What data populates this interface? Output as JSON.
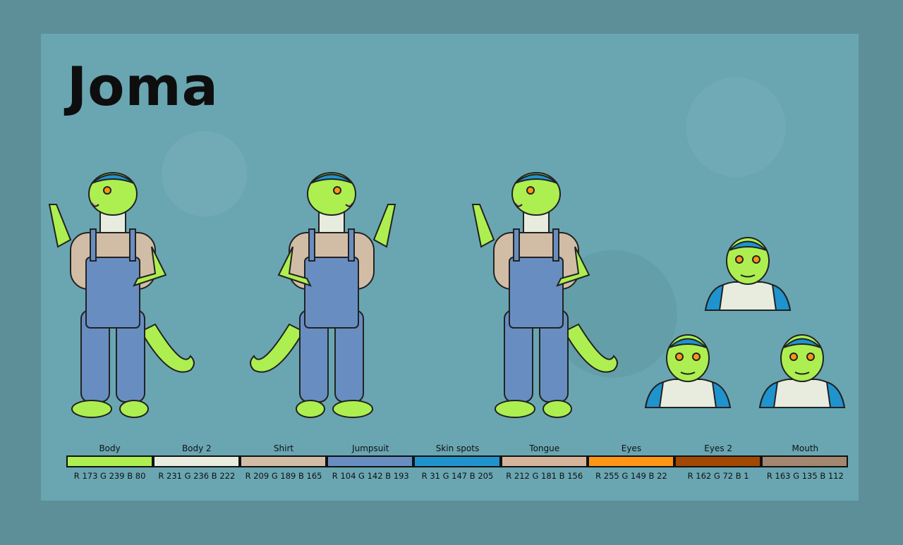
{
  "title": "Joma",
  "views": [
    "front",
    "back",
    "front-no-shirt",
    "head-neutral",
    "head-laughing",
    "head-grinning"
  ],
  "palette": [
    {
      "name": "Body",
      "rgb": "R 173 G 239 B 80",
      "hex": "#adef50"
    },
    {
      "name": "Body 2",
      "rgb": "R 231 G 236 B 222",
      "hex": "#e7ecde"
    },
    {
      "name": "Shirt",
      "rgb": "R 209 G 189 B 165",
      "hex": "#d1bda5"
    },
    {
      "name": "Jumpsuit",
      "rgb": "R 104 G 142 B 193",
      "hex": "#688ec1"
    },
    {
      "name": "Skin spots",
      "rgb": "R 31 G 147 B 205",
      "hex": "#1f93cd"
    },
    {
      "name": "Tongue",
      "rgb": "R 212 G 181 B 156",
      "hex": "#d4b59c"
    },
    {
      "name": "Eyes",
      "rgb": "R 255 G 149 B 22",
      "hex": "#ff9516"
    },
    {
      "name": "Eyes 2",
      "rgb": "R 162 G 72 B 1",
      "hex": "#a24801"
    },
    {
      "name": "Mouth",
      "rgb": "R 163 G 135 B 112",
      "hex": "#a38770"
    }
  ]
}
